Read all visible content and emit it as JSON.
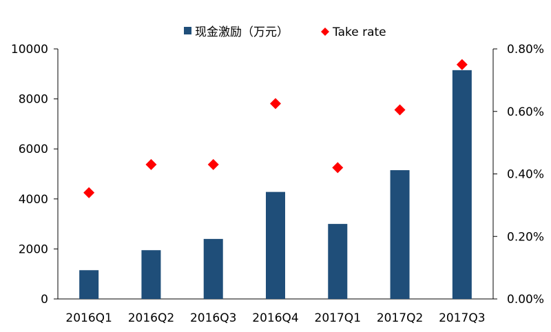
{
  "chart_data": {
    "type": "bar",
    "categories": [
      "2016Q1",
      "2016Q2",
      "2016Q3",
      "2016Q4",
      "2017Q1",
      "2017Q2",
      "2017Q3"
    ],
    "series": [
      {
        "name": "现金激励（万元）",
        "type": "bar",
        "axis": "left",
        "color": "#1F4E79",
        "values": [
          1150,
          1950,
          2400,
          4280,
          3000,
          5150,
          9150
        ]
      },
      {
        "name": "Take rate",
        "type": "scatter",
        "axis": "right",
        "color": "#FF0000",
        "marker": "diamond",
        "values": [
          0.34,
          0.43,
          0.43,
          0.625,
          0.42,
          0.605,
          0.75
        ]
      }
    ],
    "y_left": {
      "ylim": [
        0,
        10000
      ],
      "ticks": [
        0,
        2000,
        4000,
        6000,
        8000,
        10000
      ],
      "tick_labels": [
        "0",
        "2000",
        "4000",
        "6000",
        "8000",
        "10000"
      ]
    },
    "y_right": {
      "ylim": [
        0,
        0.8
      ],
      "ticks": [
        0,
        0.2,
        0.4,
        0.6,
        0.8
      ],
      "tick_labels": [
        "0.00%",
        "0.20%",
        "0.40%",
        "0.60%",
        "0.80%"
      ]
    },
    "legend_position": "top-center",
    "grid": false
  }
}
